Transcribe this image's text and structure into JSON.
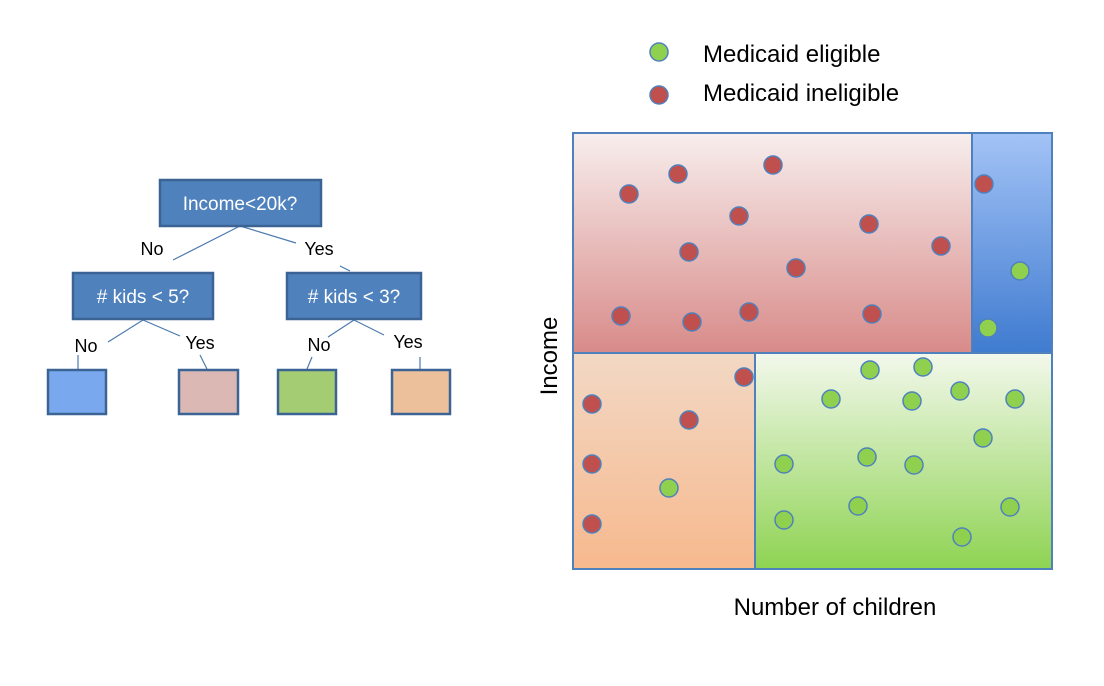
{
  "tree": {
    "root": {
      "label": "Income<20k?"
    },
    "left_split": {
      "label": "# kids < 5?"
    },
    "right_split": {
      "label": "# kids < 3?"
    },
    "branches": {
      "root_no": "No",
      "root_yes": "Yes",
      "left_no": "No",
      "left_yes": "Yes",
      "right_no": "No",
      "right_yes": "Yes"
    },
    "leaf_colors": [
      "#7aa8ee",
      "#dbb8b4",
      "#a4cc72",
      "#ecc09a"
    ]
  },
  "legend": {
    "eligible": {
      "label": "Medicaid eligible",
      "color": "#8fd14f"
    },
    "ineligible": {
      "label": "Medicaid ineligible",
      "color": "#c0504d"
    }
  },
  "axes": {
    "xlabel": "Number of children",
    "ylabel": "Income"
  },
  "regions": {
    "high_income_few_kids": {
      "gradient": [
        "#f7eeed",
        "#d88b89"
      ]
    },
    "high_income_many_kids": {
      "gradient": [
        "#a3c3f6",
        "#3f7bd0"
      ]
    },
    "low_income_few_kids": {
      "gradient": [
        "#f2d8c4",
        "#f7b98e"
      ]
    },
    "low_income_many_kids": {
      "gradient": [
        "#f3f8ec",
        "#8ed352"
      ]
    }
  }
}
